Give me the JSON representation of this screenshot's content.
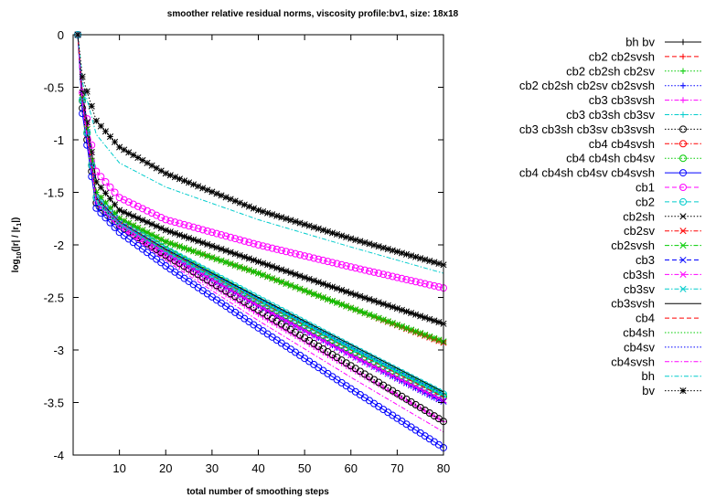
{
  "chart_data": {
    "type": "line",
    "title": "smoother relative residual norms, viscosity profile:bv1, size: 18x18",
    "xlabel": "total number of smoothing steps",
    "ylabel": {
      "base": "log",
      "sub": "10",
      "rest": "(|r| / |r",
      "sub2": "1",
      "end": "|)"
    },
    "xlim": [
      0,
      80
    ],
    "ylim": [
      -4,
      0
    ],
    "xticks": [
      10,
      20,
      30,
      40,
      50,
      60,
      70,
      80
    ],
    "yticks": [
      0,
      -0.5,
      -1,
      -1.5,
      -2,
      -2.5,
      -3,
      -3.5,
      -4
    ],
    "grid": false,
    "legend_position": "right",
    "series": [
      {
        "name": "bh bv",
        "color": "#000000",
        "dash": "solid",
        "marker": "plus",
        "y_at": {
          "1": 0,
          "2": -0.55,
          "5": -1.4,
          "10": -1.67,
          "20": -1.86,
          "40": -2.16,
          "60": -2.46,
          "80": -2.75
        }
      },
      {
        "name": "cb2 cb2svsh",
        "color": "#ff0000",
        "dash": "dash",
        "marker": "plus",
        "y_at": {
          "1": 0,
          "2": -0.6,
          "5": -1.5,
          "10": -1.75,
          "20": -1.97,
          "40": -2.27,
          "60": -2.6,
          "80": -2.93
        }
      },
      {
        "name": "cb2 cb2sh cb2sv",
        "color": "#00cc00",
        "dash": "dot",
        "marker": "plus",
        "y_at": {
          "1": 0,
          "2": -0.6,
          "5": -1.5,
          "10": -1.75,
          "20": -1.97,
          "40": -2.27,
          "60": -2.6,
          "80": -2.92
        }
      },
      {
        "name": "cb2 cb2sh cb2sv cb2svsh",
        "color": "#0000ff",
        "dash": "dot",
        "marker": "plus",
        "y_at": {
          "1": 0,
          "2": -0.62,
          "5": -1.55,
          "10": -1.8,
          "20": -2.08,
          "40": -2.58,
          "60": -3.05,
          "80": -3.5
        }
      },
      {
        "name": "cb3 cb3svsh",
        "color": "#ff00ff",
        "dash": "dashdot",
        "marker": "plus",
        "y_at": {
          "1": 0,
          "2": -0.65,
          "5": -1.6,
          "10": -1.82,
          "20": -2.12,
          "40": -2.66,
          "60": -3.18,
          "80": -3.68
        }
      },
      {
        "name": "cb3 cb3sh cb3sv",
        "color": "#00cccc",
        "dash": "dashdot",
        "marker": "plus",
        "y_at": {
          "1": 0,
          "2": -0.62,
          "5": -1.55,
          "10": -1.79,
          "20": -2.05,
          "40": -2.52,
          "60": -2.98,
          "80": -3.42
        }
      },
      {
        "name": "cb3 cb3sh cb3sv cb3svsh",
        "color": "#000000",
        "dash": "dot",
        "marker": "circle",
        "y_at": {
          "1": 0,
          "2": -0.7,
          "5": -1.6,
          "10": -1.82,
          "20": -2.1,
          "40": -2.62,
          "60": -3.15,
          "80": -3.68
        }
      },
      {
        "name": "cb4 cb4svsh",
        "color": "#ff0000",
        "dash": "dashdot",
        "marker": "circle",
        "y_at": {
          "1": 0,
          "2": -0.63,
          "5": -1.55,
          "10": -1.78,
          "20": -2.05,
          "40": -2.53,
          "60": -3.0,
          "80": -3.45
        }
      },
      {
        "name": "cb4 cb4sh cb4sv",
        "color": "#00cc00",
        "dash": "dot",
        "marker": "circle",
        "y_at": {
          "1": 0,
          "2": -0.63,
          "5": -1.55,
          "10": -1.78,
          "20": -2.05,
          "40": -2.53,
          "60": -3.0,
          "80": -3.44
        }
      },
      {
        "name": "cb4 cb4sh cb4sv cb4svsh",
        "color": "#0000ff",
        "dash": "solid",
        "marker": "circle",
        "y_at": {
          "1": 0,
          "2": -0.75,
          "5": -1.65,
          "10": -1.88,
          "20": -2.2,
          "40": -2.79,
          "60": -3.37,
          "80": -3.93
        }
      },
      {
        "name": "cb1",
        "color": "#ff00ff",
        "dash": "dash",
        "marker": "circle",
        "y_at": {
          "1": 0,
          "2": -0.55,
          "5": -1.3,
          "10": -1.55,
          "20": -1.76,
          "40": -2.0,
          "60": -2.21,
          "80": -2.41
        }
      },
      {
        "name": "cb2",
        "color": "#00cccc",
        "dash": "dash",
        "marker": "circle",
        "y_at": {
          "1": 0,
          "2": -0.62,
          "5": -1.55,
          "10": -1.78,
          "20": -2.04,
          "40": -2.51,
          "60": -2.97,
          "80": -3.42
        }
      },
      {
        "name": "cb2sh",
        "color": "#000000",
        "dash": "dot",
        "marker": "x",
        "y_at": {
          "1": 0,
          "2": -0.55,
          "5": -1.4,
          "10": -1.67,
          "20": -1.86,
          "40": -2.16,
          "60": -2.46,
          "80": -2.75
        }
      },
      {
        "name": "cb2sv",
        "color": "#ff0000",
        "dash": "dashdot",
        "marker": "x",
        "y_at": {
          "1": 0,
          "2": -0.6,
          "5": -1.5,
          "10": -1.75,
          "20": -1.97,
          "40": -2.27,
          "60": -2.6,
          "80": -2.93
        }
      },
      {
        "name": "cb2svsh",
        "color": "#00cc00",
        "dash": "dashdot",
        "marker": "x",
        "y_at": {
          "1": 0,
          "2": -0.6,
          "5": -1.5,
          "10": -1.75,
          "20": -1.97,
          "40": -2.27,
          "60": -2.6,
          "80": -2.92
        }
      },
      {
        "name": "cb3",
        "color": "#0000ff",
        "dash": "dash",
        "marker": "x",
        "y_at": {
          "1": 0,
          "2": -0.62,
          "5": -1.55,
          "10": -1.8,
          "20": -2.08,
          "40": -2.58,
          "60": -3.05,
          "80": -3.49
        }
      },
      {
        "name": "cb3sh",
        "color": "#ff00ff",
        "dash": "dashdot",
        "marker": "x",
        "y_at": {
          "1": 0,
          "2": -0.62,
          "5": -1.55,
          "10": -1.8,
          "20": -2.08,
          "40": -2.58,
          "60": -3.05,
          "80": -3.48
        }
      },
      {
        "name": "cb3sv",
        "color": "#00cccc",
        "dash": "dashdot",
        "marker": "x",
        "y_at": {
          "1": 0,
          "2": -0.62,
          "5": -1.55,
          "10": -1.79,
          "20": -2.05,
          "40": -2.52,
          "60": -2.98,
          "80": -3.43
        }
      },
      {
        "name": "cb3svsh",
        "color": "#000000",
        "dash": "solid",
        "marker": "none",
        "y_at": {
          "1": 0,
          "2": -0.62,
          "5": -1.55,
          "10": -1.78,
          "20": -2.04,
          "40": -2.5,
          "60": -2.95,
          "80": -3.4
        }
      },
      {
        "name": "cb4",
        "color": "#ff0000",
        "dash": "dash",
        "marker": "none",
        "y_at": {
          "1": 0,
          "2": -0.63,
          "5": -1.55,
          "10": -1.78,
          "20": -2.05,
          "40": -2.53,
          "60": -3.0,
          "80": -3.45
        }
      },
      {
        "name": "cb4sh",
        "color": "#00cc00",
        "dash": "dot",
        "marker": "none",
        "y_at": {
          "1": 0,
          "2": -0.63,
          "5": -1.55,
          "10": -1.78,
          "20": -2.05,
          "40": -2.53,
          "60": -3.0,
          "80": -3.44
        }
      },
      {
        "name": "cb4sv",
        "color": "#0000ff",
        "dash": "dot",
        "marker": "none",
        "y_at": {
          "1": 0,
          "2": -0.62,
          "5": -1.55,
          "10": -1.78,
          "20": -2.04,
          "40": -2.51,
          "60": -2.97,
          "80": -3.42
        }
      },
      {
        "name": "cb4svsh",
        "color": "#ff00ff",
        "dash": "dashdot",
        "marker": "none",
        "y_at": {
          "1": 0,
          "2": -0.65,
          "5": -1.6,
          "10": -1.84,
          "20": -2.15,
          "40": -2.72,
          "60": -3.26,
          "80": -3.78
        }
      },
      {
        "name": "bh",
        "color": "#00cccc",
        "dash": "dashdot",
        "marker": "none",
        "y_at": {
          "1": 0,
          "2": -0.45,
          "5": -0.95,
          "10": -1.22,
          "20": -1.45,
          "40": -1.76,
          "60": -2.02,
          "80": -2.27
        }
      },
      {
        "name": "bv",
        "color": "#000000",
        "dash": "dot",
        "marker": "star",
        "y_at": {
          "1": 0,
          "2": -0.4,
          "5": -0.82,
          "10": -1.07,
          "20": -1.32,
          "40": -1.67,
          "60": -1.94,
          "80": -2.19
        }
      }
    ]
  }
}
